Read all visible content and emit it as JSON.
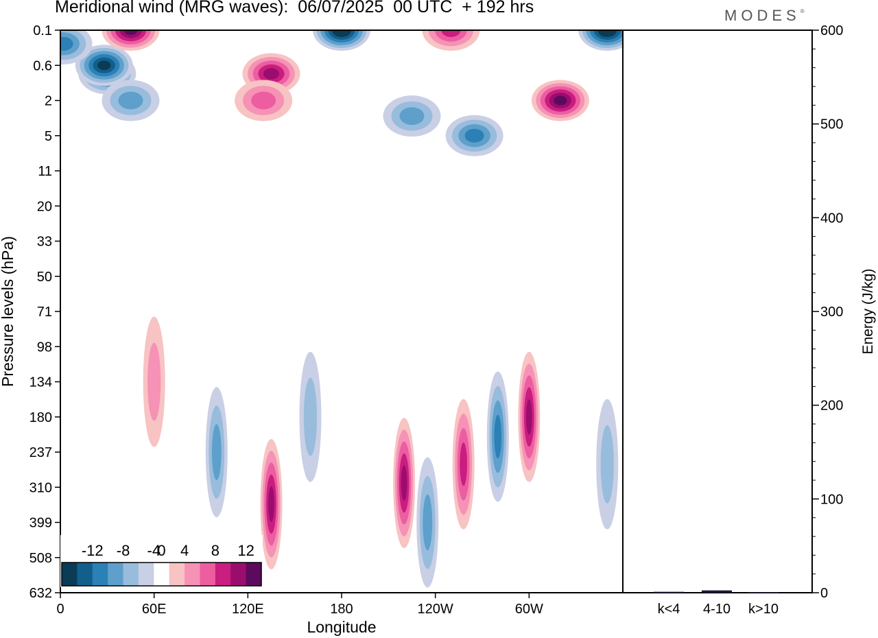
{
  "header": {
    "title": "Meridional wind (MRG waves):  06/07/2025  00 UTC  + 192 hrs",
    "brand": "MODES",
    "brand_mark": "®"
  },
  "chart_data": [
    {
      "type": "heatmap",
      "xlabel": "Longitude",
      "ylabel": "Pressure levels (hPa)",
      "x_ticks": [
        "0",
        "60E",
        "120E",
        "180",
        "120W",
        "60W"
      ],
      "x_tick_values_deg_east": [
        0,
        60,
        120,
        180,
        240,
        300
      ],
      "xlim_deg_east": [
        0,
        360
      ],
      "y_ticks": [
        "0.1",
        "0.6",
        "2",
        "5",
        "11",
        "20",
        "33",
        "50",
        "71",
        "98",
        "134",
        "180",
        "237",
        "310",
        "399",
        "508",
        "632"
      ],
      "yaxis_orientation": "top-down",
      "colorbar": {
        "labels": [
          "-12",
          "-8",
          "-4",
          "0",
          "4",
          "8",
          "12"
        ],
        "levels": [
          -14,
          -12,
          -10,
          -8,
          -6,
          -4,
          -2,
          2,
          4,
          6,
          8,
          10,
          12,
          14
        ],
        "colors": [
          "#0b3b55",
          "#125f8c",
          "#2b80b6",
          "#5e9fcb",
          "#98bcdc",
          "#c9cfe5",
          "#ffffff",
          "#f8c3c3",
          "#f592b6",
          "#ec5ea0",
          "#c91d80",
          "#9b0d6d",
          "#5c0a5e"
        ],
        "placement": "bottom-left"
      },
      "features": [
        {
          "kind": "negative",
          "lon": 30,
          "p": 0.8,
          "peak": -10
        },
        {
          "kind": "negative",
          "lon": 28,
          "p": 0.6,
          "peak": -13
        },
        {
          "kind": "negative",
          "lon": 45,
          "p": 2.0,
          "peak": -7
        },
        {
          "kind": "positive",
          "lon": 45,
          "p": 0.1,
          "peak": 13
        },
        {
          "kind": "negative",
          "lon": 2,
          "p": 0.2,
          "peak": -8
        },
        {
          "kind": "negative",
          "lon": 180,
          "p": 0.1,
          "peak": -14
        },
        {
          "kind": "negative",
          "lon": 350,
          "p": 0.1,
          "peak": -14
        },
        {
          "kind": "positive",
          "lon": 135,
          "p": 0.8,
          "peak": 10
        },
        {
          "kind": "positive",
          "lon": 130,
          "p": 2.0,
          "peak": 7
        },
        {
          "kind": "positive",
          "lon": 320,
          "p": 2.0,
          "peak": 12
        },
        {
          "kind": "positive",
          "lon": 250,
          "p": 0.1,
          "peak": 9
        },
        {
          "kind": "negative",
          "lon": 265,
          "p": 5.0,
          "peak": -9
        },
        {
          "kind": "negative",
          "lon": 225,
          "p": 3.0,
          "peak": -6
        },
        {
          "kind": "positive",
          "lon": 60,
          "p": 134,
          "peak": 4
        },
        {
          "kind": "negative",
          "lon": 100,
          "p": 237,
          "peak": -7
        },
        {
          "kind": "positive",
          "lon": 135,
          "p": 350,
          "peak": 10
        },
        {
          "kind": "negative",
          "lon": 160,
          "p": 180,
          "peak": -5
        },
        {
          "kind": "positive",
          "lon": 220,
          "p": 300,
          "peak": 11
        },
        {
          "kind": "negative",
          "lon": 235,
          "p": 399,
          "peak": -7
        },
        {
          "kind": "positive",
          "lon": 258,
          "p": 260,
          "peak": 8
        },
        {
          "kind": "negative",
          "lon": 280,
          "p": 210,
          "peak": -9
        },
        {
          "kind": "positive",
          "lon": 300,
          "p": 180,
          "peak": 10
        },
        {
          "kind": "negative",
          "lon": 350,
          "p": 260,
          "peak": -5
        }
      ]
    },
    {
      "type": "bar",
      "categories": [
        "k<4",
        "4-10",
        "k>10"
      ],
      "values": [
        1.0,
        2.5,
        0.5
      ],
      "ylabel": "Energy (J/kg)",
      "ylim": [
        0,
        600
      ],
      "y_ticks": [
        "0",
        "100",
        "200",
        "300",
        "400",
        "500",
        "600"
      ],
      "bar_color": "#1a1a3a"
    }
  ]
}
